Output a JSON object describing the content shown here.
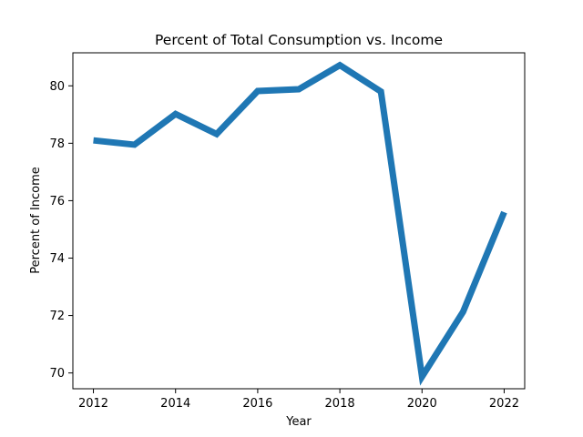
{
  "chart_data": {
    "type": "line",
    "title": "Percent of Total Consumption vs. Income",
    "xlabel": "Year",
    "ylabel": "Percent of Income",
    "x": [
      2012,
      2013,
      2014,
      2015,
      2016,
      2017,
      2018,
      2019,
      2020,
      2021,
      2022
    ],
    "series": [
      {
        "values": [
          78.1,
          77.95,
          79.02,
          78.32,
          79.82,
          79.88,
          80.72,
          79.8,
          69.87,
          72.13,
          75.6
        ],
        "color": "#1f77b4"
      }
    ],
    "xlim": [
      2011.5,
      2022.5
    ],
    "ylim": [
      69.45,
      81.15
    ],
    "xticks": [
      2012,
      2014,
      2016,
      2018,
      2020,
      2022
    ],
    "xtick_labels": [
      "2012",
      "2014",
      "2016",
      "2018",
      "2020",
      "2022"
    ],
    "yticks": [
      70,
      72,
      74,
      76,
      78,
      80
    ],
    "ytick_labels": [
      "70",
      "72",
      "74",
      "76",
      "78",
      "80"
    ],
    "grid": false,
    "legend": "none"
  }
}
